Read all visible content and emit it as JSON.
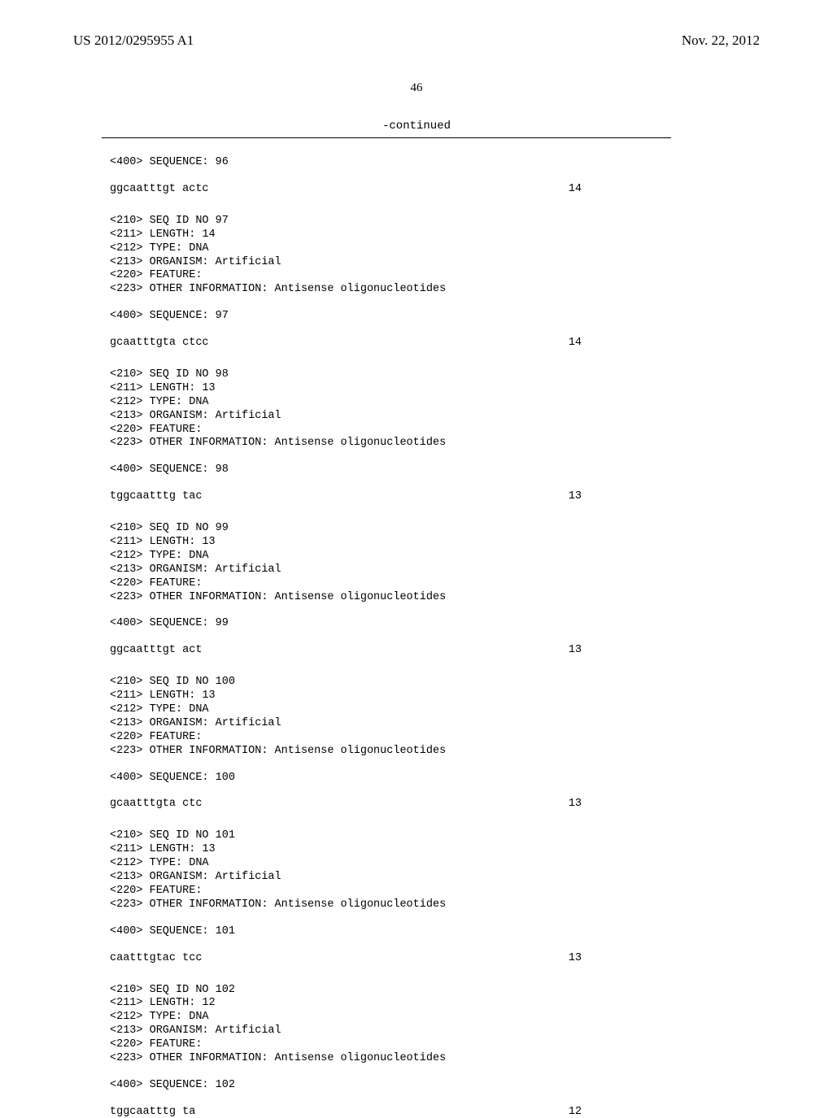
{
  "header": {
    "left": "US 2012/0295955 A1",
    "right": "Nov. 22, 2012"
  },
  "page_number": "46",
  "continued_label": "-continued",
  "entries": [
    {
      "sequence_label": "<400> SEQUENCE: 96",
      "sequence_text": "ggcaatttgt actc",
      "sequence_length": "14"
    },
    {
      "meta": [
        "<210> SEQ ID NO 97",
        "<211> LENGTH: 14",
        "<212> TYPE: DNA",
        "<213> ORGANISM: Artificial",
        "<220> FEATURE:",
        "<223> OTHER INFORMATION: Antisense oligonucleotides"
      ],
      "sequence_label": "<400> SEQUENCE: 97",
      "sequence_text": "gcaatttgta ctcc",
      "sequence_length": "14"
    },
    {
      "meta": [
        "<210> SEQ ID NO 98",
        "<211> LENGTH: 13",
        "<212> TYPE: DNA",
        "<213> ORGANISM: Artificial",
        "<220> FEATURE:",
        "<223> OTHER INFORMATION: Antisense oligonucleotides"
      ],
      "sequence_label": "<400> SEQUENCE: 98",
      "sequence_text": "tggcaatttg tac",
      "sequence_length": "13"
    },
    {
      "meta": [
        "<210> SEQ ID NO 99",
        "<211> LENGTH: 13",
        "<212> TYPE: DNA",
        "<213> ORGANISM: Artificial",
        "<220> FEATURE:",
        "<223> OTHER INFORMATION: Antisense oligonucleotides"
      ],
      "sequence_label": "<400> SEQUENCE: 99",
      "sequence_text": "ggcaatttgt act",
      "sequence_length": "13"
    },
    {
      "meta": [
        "<210> SEQ ID NO 100",
        "<211> LENGTH: 13",
        "<212> TYPE: DNA",
        "<213> ORGANISM: Artificial",
        "<220> FEATURE:",
        "<223> OTHER INFORMATION: Antisense oligonucleotides"
      ],
      "sequence_label": "<400> SEQUENCE: 100",
      "sequence_text": "gcaatttgta ctc",
      "sequence_length": "13"
    },
    {
      "meta": [
        "<210> SEQ ID NO 101",
        "<211> LENGTH: 13",
        "<212> TYPE: DNA",
        "<213> ORGANISM: Artificial",
        "<220> FEATURE:",
        "<223> OTHER INFORMATION: Antisense oligonucleotides"
      ],
      "sequence_label": "<400> SEQUENCE: 101",
      "sequence_text": "caatttgtac tcc",
      "sequence_length": "13"
    },
    {
      "meta": [
        "<210> SEQ ID NO 102",
        "<211> LENGTH: 12",
        "<212> TYPE: DNA",
        "<213> ORGANISM: Artificial",
        "<220> FEATURE:",
        "<223> OTHER INFORMATION: Antisense oligonucleotides"
      ],
      "sequence_label": "<400> SEQUENCE: 102",
      "sequence_text": "tggcaatttg ta",
      "sequence_length": "12"
    }
  ]
}
